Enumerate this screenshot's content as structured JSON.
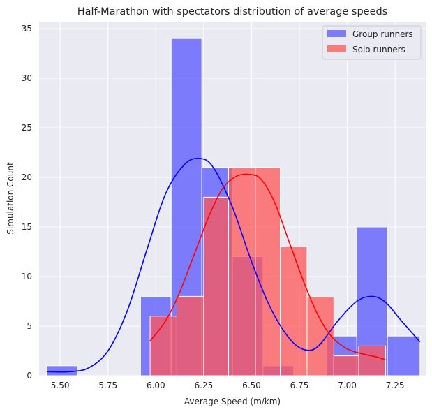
{
  "chart_data": {
    "type": "bar",
    "title": "Half-Marathon with spectators distribution of average speeds",
    "xlabel": "Average Speed (m/km)",
    "ylabel": "Simulation Count",
    "xlim": [
      5.39,
      7.41
    ],
    "ylim": [
      0,
      35.7
    ],
    "xticks": [
      "5.50",
      "5.75",
      "6.00",
      "6.25",
      "6.50",
      "6.75",
      "7.00",
      "7.25"
    ],
    "xtick_values": [
      5.5,
      5.75,
      6.0,
      6.25,
      6.5,
      6.75,
      7.0,
      7.25
    ],
    "yticks": [
      "0",
      "5",
      "10",
      "15",
      "20",
      "25",
      "30",
      "35"
    ],
    "ytick_values": [
      0,
      5,
      10,
      15,
      20,
      25,
      30,
      35
    ],
    "grid": true,
    "legend_position": "top-right",
    "series": [
      {
        "name": "Group runners",
        "color": "#5555ff",
        "kde_color": "#0000ff",
        "bins": [
          {
            "x0": 5.43,
            "x1": 5.59,
            "count": 1
          },
          {
            "x0": 5.92,
            "x1": 6.08,
            "count": 8
          },
          {
            "x0": 6.08,
            "x1": 6.24,
            "count": 34
          },
          {
            "x0": 6.24,
            "x1": 6.4,
            "count": 21
          },
          {
            "x0": 6.4,
            "x1": 6.56,
            "count": 12
          },
          {
            "x0": 6.56,
            "x1": 6.72,
            "count": 1
          },
          {
            "x0": 6.89,
            "x1": 7.05,
            "count": 4
          },
          {
            "x0": 7.05,
            "x1": 7.21,
            "count": 15
          },
          {
            "x0": 7.21,
            "x1": 7.38,
            "count": 4
          }
        ],
        "kde": {
          "x": [
            5.43,
            5.55,
            5.65,
            5.75,
            5.85,
            5.95,
            6.05,
            6.15,
            6.23,
            6.3,
            6.4,
            6.5,
            6.6,
            6.7,
            6.78,
            6.85,
            6.95,
            7.05,
            7.13,
            7.2,
            7.28,
            7.38
          ],
          "y": [
            0.4,
            0.4,
            0.8,
            2.5,
            6.5,
            12.5,
            18.3,
            21.3,
            21.9,
            21.0,
            17.0,
            11.5,
            6.8,
            3.7,
            2.6,
            3.0,
            5.5,
            7.5,
            8.0,
            7.4,
            5.6,
            3.4
          ]
        }
      },
      {
        "name": "Solo runners",
        "color": "#ff5555",
        "kde_color": "#ff0000",
        "bins": [
          {
            "x0": 5.97,
            "x1": 6.11,
            "count": 6
          },
          {
            "x0": 6.11,
            "x1": 6.25,
            "count": 8
          },
          {
            "x0": 6.25,
            "x1": 6.38,
            "count": 18
          },
          {
            "x0": 6.38,
            "x1": 6.52,
            "count": 21
          },
          {
            "x0": 6.52,
            "x1": 6.65,
            "count": 21
          },
          {
            "x0": 6.65,
            "x1": 6.79,
            "count": 13
          },
          {
            "x0": 6.79,
            "x1": 6.93,
            "count": 8
          },
          {
            "x0": 6.93,
            "x1": 7.06,
            "count": 2
          },
          {
            "x0": 7.06,
            "x1": 7.2,
            "count": 3
          }
        ],
        "kde": {
          "x": [
            5.97,
            6.05,
            6.12,
            6.2,
            6.28,
            6.35,
            6.42,
            6.49,
            6.55,
            6.62,
            6.7,
            6.78,
            6.85,
            6.92,
            7.0,
            7.08,
            7.15,
            7.2
          ],
          "y": [
            3.5,
            5.5,
            8.2,
            12.2,
            16.2,
            18.9,
            20.1,
            20.3,
            19.8,
            17.5,
            13.3,
            9.1,
            6.0,
            3.9,
            2.7,
            2.2,
            1.9,
            1.6
          ]
        }
      }
    ]
  }
}
